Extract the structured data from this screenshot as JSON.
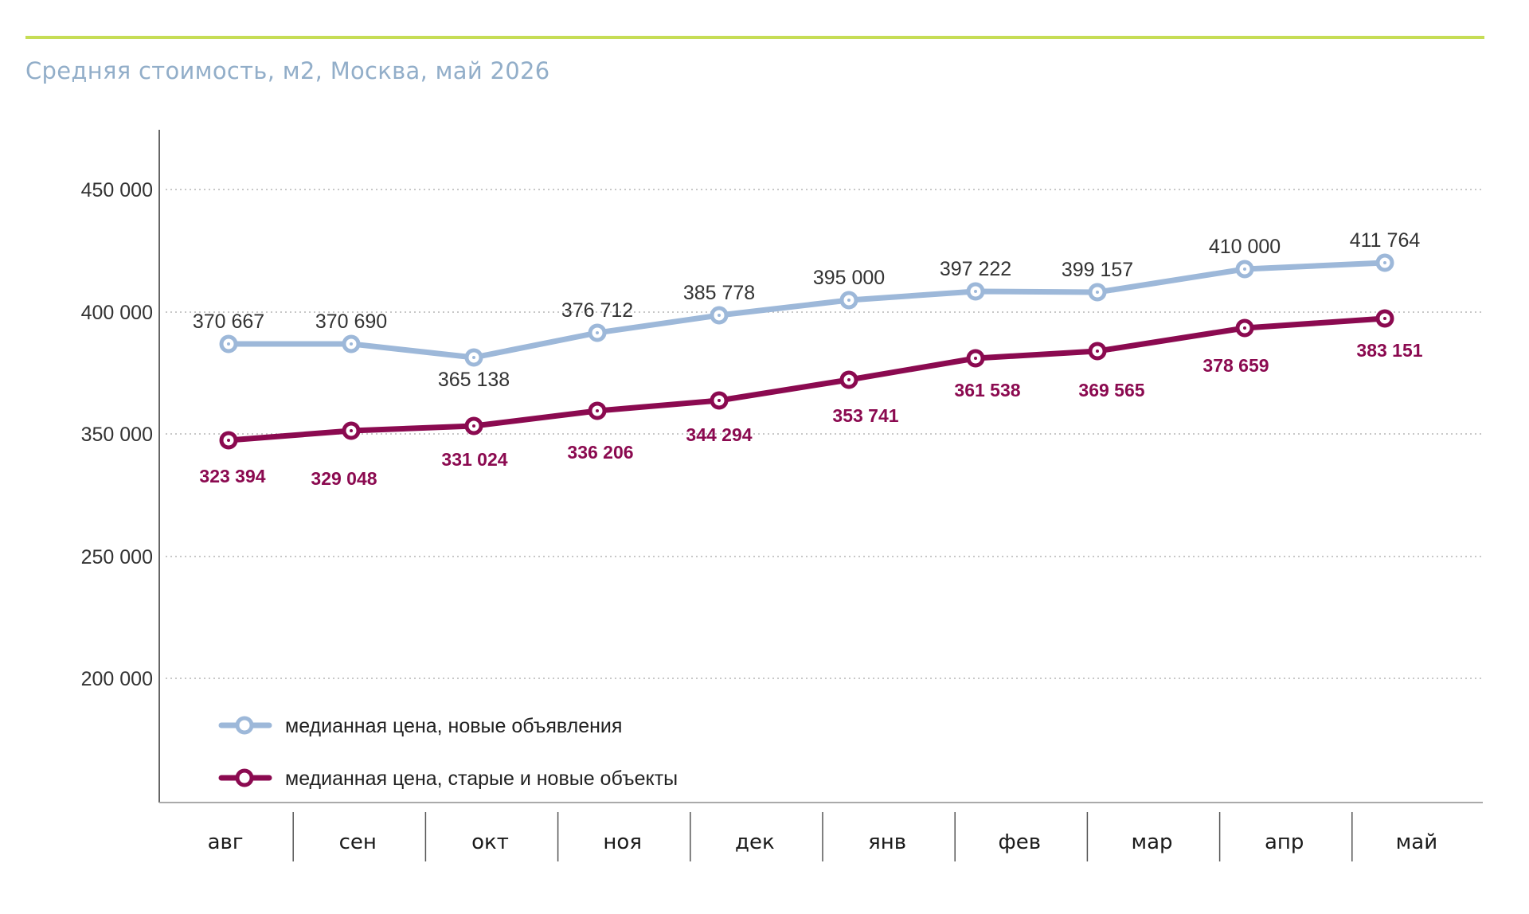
{
  "title": "Средняя стоимость, м2, Москва, май 2026",
  "colors": {
    "accent_rule": "#c6dd55",
    "title": "#92aec9",
    "series_new": "#9db8d9",
    "series_old": "#8b0a50",
    "grid": "#b5b5b5",
    "axis": "#666666"
  },
  "chart_data": {
    "type": "line",
    "categories": [
      "авг",
      "сен",
      "окт",
      "ноя",
      "дек",
      "янв",
      "фев",
      "мар",
      "апр",
      "май"
    ],
    "yticks": [
      {
        "label": "450 000"
      },
      {
        "label": "400 000"
      },
      {
        "label": "350 000"
      },
      {
        "label": "250 000"
      },
      {
        "label": "200 000"
      }
    ],
    "grid": "horizontal dotted",
    "legend_placement": "bottom-left",
    "series": [
      {
        "name": "медианная цена, новые объявления",
        "values": [
          370667,
          370690,
          365138,
          376712,
          385778,
          395000,
          397222,
          399157,
          410000,
          411764
        ],
        "labels": [
          "370 667",
          "370 690",
          "365 138",
          "376 712",
          "385 778",
          "395 000",
          "397 222",
          "399 157",
          "410 000",
          "411 764"
        ]
      },
      {
        "name": "медианная цена, старые и новые объекты",
        "values": [
          323394,
          329048,
          331024,
          336206,
          344294,
          353741,
          361538,
          369565,
          378659,
          383151
        ],
        "labels": [
          "323 394",
          "329 048",
          "331 024",
          "336 206",
          "344 294",
          "353 741",
          "361 538",
          "369 565",
          "378 659",
          "383 151"
        ]
      }
    ]
  }
}
